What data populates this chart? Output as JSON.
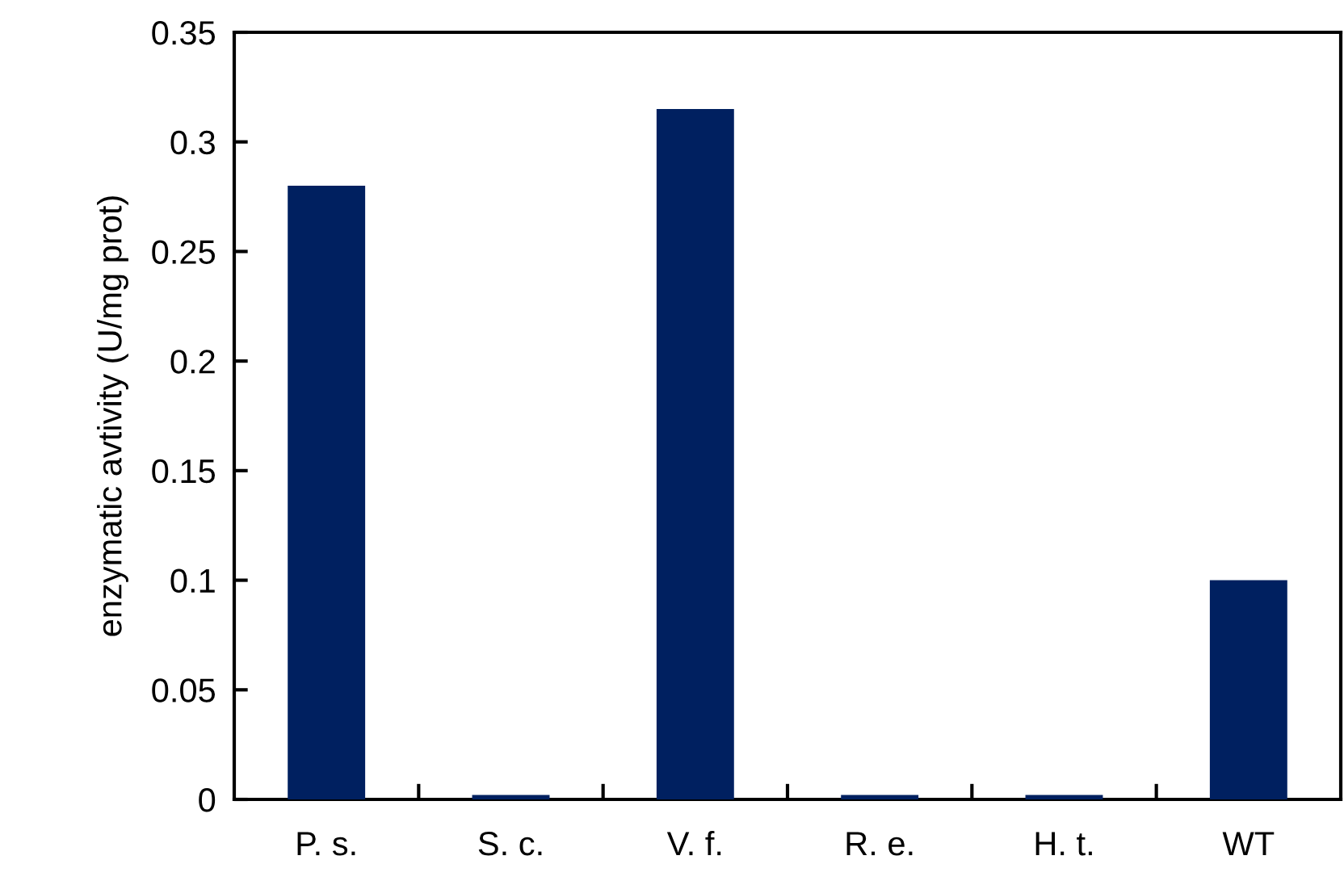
{
  "chart_data": {
    "type": "bar",
    "ylabel": "enzymatic avtivity (U/mg prot)",
    "categories": [
      "P. s.",
      "S. c.",
      "V. f.",
      "R. e.",
      "H. t.",
      "WT"
    ],
    "values": [
      0.28,
      0.002,
      0.315,
      0.002,
      0.002,
      0.1
    ],
    "color": "#002060",
    "ylim": [
      0,
      0.35
    ],
    "yticks": [
      0,
      0.05,
      0.1,
      0.15,
      0.2,
      0.25,
      0.3,
      0.35
    ],
    "grid": false,
    "legend": false
  }
}
